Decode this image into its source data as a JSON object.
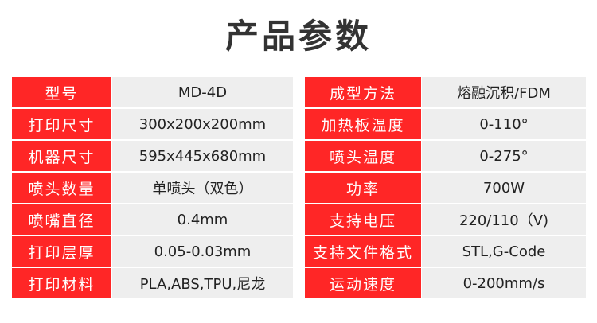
{
  "title": "产品参数",
  "colors": {
    "label_bg": "#ff2626",
    "value_bg": "#eeeeee"
  },
  "left": [
    {
      "label": "型号",
      "value": "MD-4D"
    },
    {
      "label": "打印尺寸",
      "value": "300x200x200mm"
    },
    {
      "label": "机器尺寸",
      "value": "595x445x680mm"
    },
    {
      "label": "喷头数量",
      "value": "单喷头（双色）"
    },
    {
      "label": "喷嘴直径",
      "value": "0.4mm"
    },
    {
      "label": "打印层厚",
      "value": "0.05-0.03mm"
    },
    {
      "label": "打印材料",
      "value": "PLA,ABS,TPU,尼龙"
    }
  ],
  "right": [
    {
      "label": "成型方法",
      "value": "熔融沉积/FDM"
    },
    {
      "label": "加热板温度",
      "value": "0-110°"
    },
    {
      "label": "喷头温度",
      "value": "0-275°"
    },
    {
      "label": "功率",
      "value": "700W"
    },
    {
      "label": "支持电压",
      "value": "220/110（V)"
    },
    {
      "label": "支持文件格式",
      "value": "STL,G-Code"
    },
    {
      "label": "运动速度",
      "value": "0-200mm/s"
    }
  ]
}
